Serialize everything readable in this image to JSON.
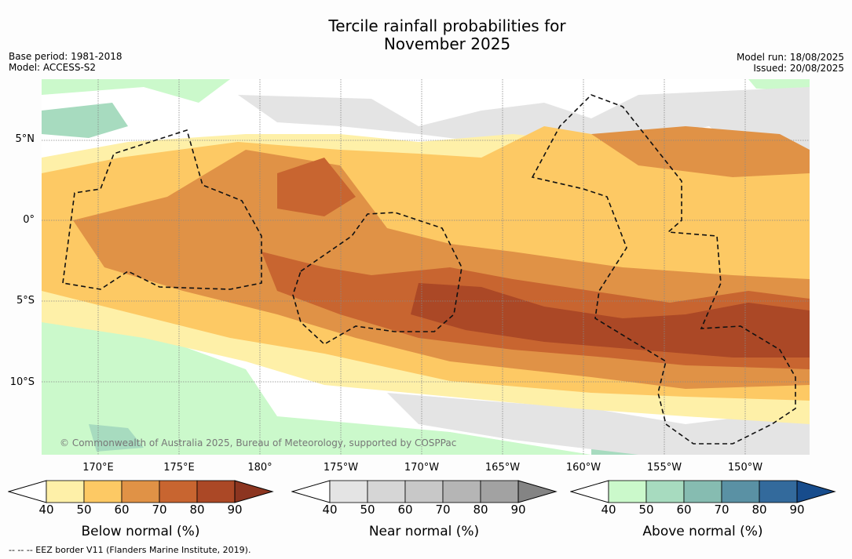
{
  "title": {
    "line1": "Tercile rainfall probabilities for",
    "line2": "November 2025"
  },
  "meta": {
    "base_period": "Base period: 1981-2018",
    "model": "Model: ACCESS-S2",
    "model_run": "Model run: 18/08/2025",
    "issued": "Issued: 20/08/2025"
  },
  "axes": {
    "lat_labels": [
      "5°N",
      "0°",
      "5°S",
      "10°S"
    ],
    "lon_labels": [
      "170°E",
      "175°E",
      "180°",
      "175°W",
      "170°W",
      "165°W",
      "160°W",
      "155°W",
      "150°W"
    ]
  },
  "credit": "© Commonwealth of Australia 2025, Bureau of Meteorology, supported by COSPPac",
  "colorbars": [
    {
      "label": "Below normal (%)",
      "ticks": [
        "40",
        "50",
        "60",
        "70",
        "80",
        "90"
      ],
      "colors": [
        "#fef0a8",
        "#fdc964",
        "#e09246",
        "#c86530",
        "#ab4826",
        "#8c3520"
      ]
    },
    {
      "label": "Near normal (%)",
      "ticks": [
        "40",
        "50",
        "60",
        "70",
        "80",
        "90"
      ],
      "colors": [
        "#e4e4e4",
        "#d6d6d6",
        "#c8c8c8",
        "#b5b5b5",
        "#a2a2a2",
        "#848484"
      ]
    },
    {
      "label": "Above normal (%)",
      "ticks": [
        "40",
        "50",
        "60",
        "70",
        "80",
        "90"
      ],
      "colors": [
        "#cbf9cb",
        "#a7dbbf",
        "#86bcb1",
        "#5a91a4",
        "#336a9c",
        "#174c8c"
      ]
    }
  ],
  "footer": "--  --  -- EEZ border V11 (Flanders Marine Institute, 2019)."
}
